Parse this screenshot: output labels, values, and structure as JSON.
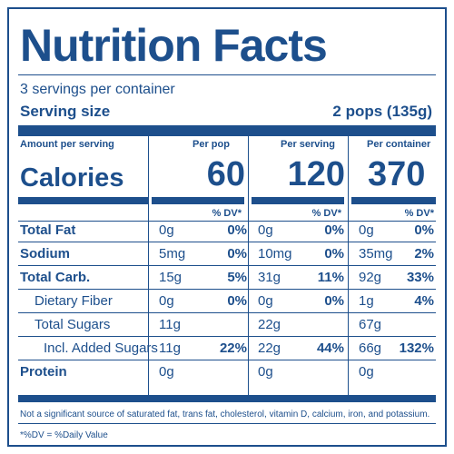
{
  "title": "Nutrition Facts",
  "servings_per_container": "3 servings per container",
  "serving_size_label": "Serving size",
  "serving_size_value": "2 pops (135g)",
  "amount_per_serving_label": "Amount per serving",
  "calories_label": "Calories",
  "columns": [
    {
      "header": "Per pop",
      "calories": "60",
      "dv_header": "% DV*"
    },
    {
      "header": "Per serving",
      "calories": "120",
      "dv_header": "% DV*"
    },
    {
      "header": "Per container",
      "calories": "370",
      "dv_header": "% DV*"
    }
  ],
  "nutrients": [
    {
      "name": "Total Fat",
      "bold": true,
      "indent": 0,
      "values": [
        {
          "amount": "0g",
          "dv": "0%"
        },
        {
          "amount": "0g",
          "dv": "0%"
        },
        {
          "amount": "0g",
          "dv": "0%"
        }
      ]
    },
    {
      "name": "Sodium",
      "bold": true,
      "indent": 0,
      "values": [
        {
          "amount": "5mg",
          "dv": "0%"
        },
        {
          "amount": "10mg",
          "dv": "0%"
        },
        {
          "amount": "35mg",
          "dv": "2%"
        }
      ]
    },
    {
      "name": "Total Carb.",
      "bold": true,
      "indent": 0,
      "values": [
        {
          "amount": "15g",
          "dv": "5%"
        },
        {
          "amount": "31g",
          "dv": "11%"
        },
        {
          "amount": "92g",
          "dv": "33%"
        }
      ]
    },
    {
      "name": "Dietary Fiber",
      "bold": false,
      "indent": 1,
      "values": [
        {
          "amount": "0g",
          "dv": "0%"
        },
        {
          "amount": "0g",
          "dv": "0%"
        },
        {
          "amount": "1g",
          "dv": "4%"
        }
      ]
    },
    {
      "name": "Total Sugars",
      "bold": false,
      "indent": 1,
      "values": [
        {
          "amount": "11g",
          "dv": ""
        },
        {
          "amount": "22g",
          "dv": ""
        },
        {
          "amount": "67g",
          "dv": ""
        }
      ]
    },
    {
      "name": "Incl. Added Sugars",
      "bold": false,
      "indent": 2,
      "values": [
        {
          "amount": "11g",
          "dv": "22%"
        },
        {
          "amount": "22g",
          "dv": "44%"
        },
        {
          "amount": "66g",
          "dv": "132%"
        }
      ]
    },
    {
      "name": "Protein",
      "bold": true,
      "indent": 0,
      "values": [
        {
          "amount": "0g",
          "dv": ""
        },
        {
          "amount": "0g",
          "dv": ""
        },
        {
          "amount": "0g",
          "dv": ""
        }
      ]
    }
  ],
  "footnote_nutrients": "Not a significant source of saturated fat, trans fat, cholesterol, vitamin D, calcium, iron, and potassium.",
  "footnote_dv": "*%DV = %Daily Value",
  "colors": {
    "ink": "#1d4f8c",
    "background": "#ffffff"
  }
}
